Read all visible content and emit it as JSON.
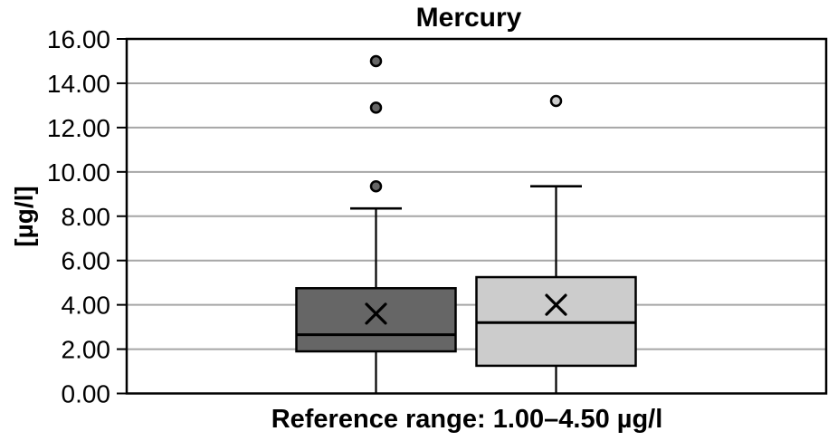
{
  "chart_data": {
    "type": "boxplot",
    "title": "Mercury",
    "ylabel": "[µg/l]",
    "xlabel": "Reference range: 1.00–4.50 µg/l",
    "ylim": [
      0,
      16
    ],
    "ytick_step": 2,
    "ytick_labels": [
      "0.00",
      "2.00",
      "4.00",
      "6.00",
      "8.00",
      "10.00",
      "12.00",
      "14.00",
      "16.00"
    ],
    "grid": true,
    "legend": false,
    "series": [
      {
        "fill_color": "#666666",
        "whisker_low": 0.0,
        "q1": 1.9,
        "median": 2.65,
        "q3": 4.75,
        "whisker_high": 8.35,
        "mean": 3.6,
        "outliers": [
          9.35,
          12.9,
          15.0
        ]
      },
      {
        "fill_color": "#cccccc",
        "whisker_low": 0.0,
        "q1": 1.25,
        "median": 3.2,
        "q3": 5.25,
        "whisker_high": 9.35,
        "mean": 4.0,
        "outliers": [
          13.2
        ]
      }
    ],
    "colors": {
      "axis": "#000000",
      "gridline": "#a6a6a6",
      "marker_stroke": "#000000",
      "background": "#ffffff"
    }
  }
}
